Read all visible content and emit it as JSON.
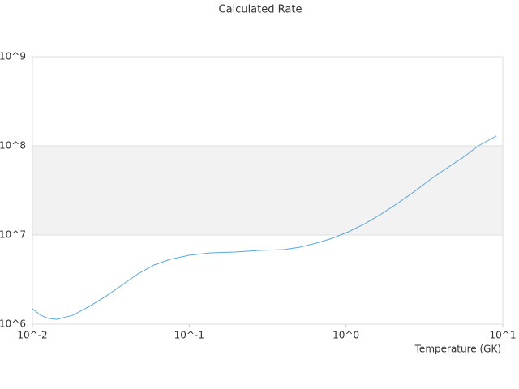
{
  "chart_data": {
    "type": "line",
    "title": "Calculated Rate",
    "x_label": "Temperature (GK)",
    "x": [
      0.01,
      0.01127,
      0.01269,
      0.01429,
      0.01815,
      0.023,
      0.0292,
      0.0371,
      0.047,
      0.0597,
      0.0757,
      0.0996,
      0.1374,
      0.1963,
      0.2806,
      0.401,
      0.509,
      0.646,
      0.82,
      1.04,
      1.32,
      1.68,
      2.13,
      2.7,
      3.42,
      4.35,
      5.51,
      7.0,
      9.09
    ],
    "series": [
      {
        "name": "Rate",
        "color": "#5aa7e0",
        "values": [
          1490000,
          1260000,
          1160000,
          1130000,
          1260000,
          1580000,
          2040000,
          2730000,
          3660000,
          4610000,
          5340000,
          5930000,
          6310000,
          6440000,
          6720000,
          6860000,
          7310000,
          8110000,
          9200000,
          10900000,
          13400000,
          17200000,
          22600000,
          30300000,
          41500000,
          55600000,
          73100000,
          100000000,
          129000000
        ]
      }
    ],
    "xlim": [
      0.01,
      10
    ],
    "ylim": [
      1000000,
      1000000000
    ],
    "xticks": [
      {
        "value": 0.01,
        "label": "10^-2"
      },
      {
        "value": 0.1,
        "label": "10^-1"
      },
      {
        "value": 1,
        "label": "10^0"
      },
      {
        "value": 10,
        "label": "10^1"
      }
    ],
    "yticks": [
      {
        "value": 1000000,
        "label": "10^6"
      },
      {
        "value": 10000000,
        "label": "10^7"
      },
      {
        "value": 100000000,
        "label": "10^8"
      },
      {
        "value": 1000000000,
        "label": "10^9"
      }
    ],
    "xscale": "log",
    "yscale": "log",
    "grid": true,
    "band_color": "#f2f2f2"
  }
}
